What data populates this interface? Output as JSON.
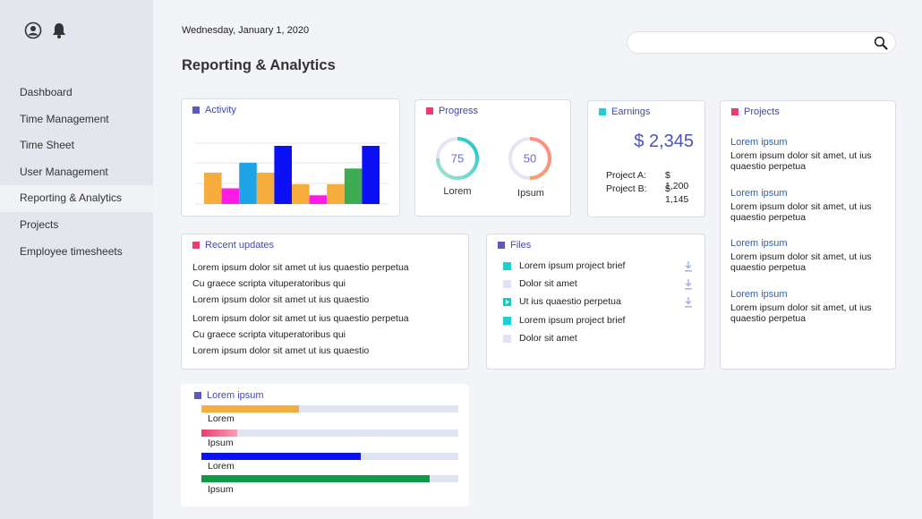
{
  "sidebar": {
    "icons": [
      "user-circle-icon",
      "bell-icon"
    ],
    "items": [
      {
        "label": "Dashboard"
      },
      {
        "label": "Time Management"
      },
      {
        "label": "Time Sheet"
      },
      {
        "label": "User Management"
      },
      {
        "label": "Reporting & Analytics",
        "active": true
      },
      {
        "label": "Projects"
      },
      {
        "label": "Employee timesheets"
      }
    ]
  },
  "header": {
    "date": "Wednesday, January 1, 2020",
    "title": "Reporting & Analytics",
    "search": {
      "value": "",
      "placeholder": "",
      "icon": "search-icon"
    }
  },
  "colors": {
    "blue_square": "#5b5bb8",
    "pink_square": "#ee3a72",
    "teal_square": "#1ad1cf",
    "orange": "#f7ad3e",
    "magenta": "#ff1ae6",
    "sky": "#1ea3e6",
    "navy": "#0b10f5",
    "green": "#3dac50",
    "title_blue": "#2a63b8"
  },
  "activity": {
    "title": "Activity",
    "chart_data": {
      "type": "bar",
      "title": "",
      "grid": true,
      "ylim": [
        0,
        100
      ],
      "values": [
        54,
        27,
        71,
        54,
        100,
        34,
        15,
        34,
        61,
        100
      ],
      "colors": [
        "#f7ad3e",
        "#ff1ae6",
        "#1ea3e6",
        "#f7ad3e",
        "#0b10f5",
        "#f7ad3e",
        "#ff1ae6",
        "#f7ad3e",
        "#3dac50",
        "#0b10f5"
      ]
    }
  },
  "progress": {
    "title": "Progress",
    "rings": [
      {
        "value": "75",
        "label": "Lorem",
        "percent": 75,
        "color_start": "#a8e6cf",
        "color_end": "#1ac8c8"
      },
      {
        "value": "50",
        "label": "Ipsum",
        "percent": 50,
        "color_start": "#f7a860",
        "color_end": "#ff8a8a"
      }
    ]
  },
  "earnings": {
    "title": "Earnings",
    "total": "$ 2,345",
    "rows": [
      {
        "label": "Project A:",
        "value": "$ 1,200"
      },
      {
        "label": "Project B:",
        "value": "$ 1,145"
      }
    ]
  },
  "projects": {
    "title": "Projects",
    "items": [
      {
        "title": "Lorem ipsum",
        "desc": "Lorem ipsum dolor sit amet, ut ius quaestio perpetua"
      },
      {
        "title": "Lorem ipsum",
        "desc": "Lorem ipsum dolor sit amet, ut ius quaestio perpetua"
      },
      {
        "title": "Lorem ipsum",
        "desc": "Lorem ipsum dolor sit amet, ut ius quaestio perpetua"
      },
      {
        "title": "Lorem ipsum",
        "desc": "Lorem ipsum dolor sit amet, ut ius quaestio perpetua"
      }
    ]
  },
  "updates": {
    "title": "Recent updates",
    "items": [
      "Lorem ipsum dolor sit amet ut ius quaestio perpetua",
      "Cu graece scripta vituperatoribus qui",
      "Lorem ipsum dolor sit amet ut ius quaestio",
      "Lorem ipsum dolor sit amet ut ius quaestio perpetua",
      "Cu graece scripta vituperatoribus qui",
      "Lorem ipsum dolor sit amet ut ius quaestio"
    ]
  },
  "files": {
    "title": "Files",
    "items": [
      {
        "name": "Lorem ipsum project brief",
        "icon": "teal-square-icon",
        "download": true
      },
      {
        "name": "Dolor sit amet",
        "icon": "lavender-square-icon",
        "download": true
      },
      {
        "name": "Ut ius quaestio perpetua",
        "icon": "play-icon",
        "download": true
      },
      {
        "name": "Lorem ipsum project brief",
        "icon": "teal-square-icon",
        "download": false
      },
      {
        "name": "Dolor sit amet",
        "icon": "lavender-square-icon",
        "download": false
      }
    ]
  },
  "lorem_bars": {
    "title": "Lorem ipsum",
    "bars": [
      {
        "label": "Lorem",
        "percent": 38,
        "color": "#f7ad3e"
      },
      {
        "label": "Ipsum",
        "percent": 14,
        "color": "#f7758a"
      },
      {
        "label": "Lorem",
        "percent": 62,
        "color": "#0b10f5"
      },
      {
        "label": "Ipsum",
        "percent": 89,
        "color": "#0e9a47"
      }
    ]
  }
}
